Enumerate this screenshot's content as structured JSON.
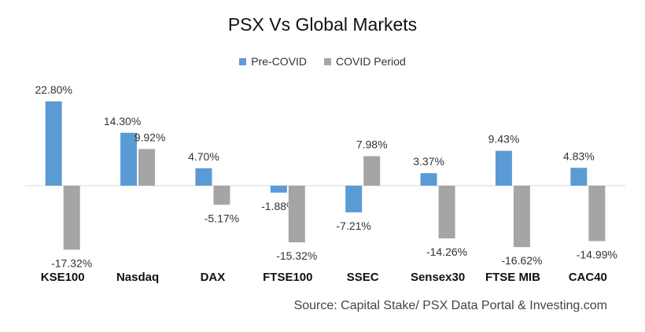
{
  "chart_data": {
    "type": "bar",
    "title": "PSX Vs Global Markets",
    "categories": [
      "KSE100",
      "Nasdaq",
      "DAX",
      "FTSE100",
      "SSEC",
      "Sensex30",
      "FTSE MIB",
      "CAC40"
    ],
    "series": [
      {
        "name": "Pre-COVID",
        "color": "#5b9bd5",
        "values": [
          22.8,
          14.3,
          4.7,
          -1.88,
          -7.21,
          3.37,
          9.43,
          4.83
        ],
        "labels": [
          "22.80%",
          "14.30%",
          "4.70%",
          "-1.88%",
          "-7.21%",
          "3.37%",
          "9.43%",
          "4.83%"
        ]
      },
      {
        "name": "COVID Period",
        "color": "#a5a5a5",
        "values": [
          -17.32,
          9.92,
          -5.17,
          -15.32,
          7.98,
          -14.26,
          -16.62,
          -14.99
        ],
        "labels": [
          "-17.32%",
          "9.92%",
          "-5.17%",
          "-15.32%",
          "7.98%",
          "-14.26%",
          "-16.62%",
          "-14.99%"
        ]
      }
    ],
    "ylim": [
      -20,
      25
    ],
    "grid": false,
    "legend_position": "top-center",
    "xlabel": "",
    "ylabel": ""
  },
  "source": "Source: Capital Stake/ PSX Data Portal & Investing.com"
}
